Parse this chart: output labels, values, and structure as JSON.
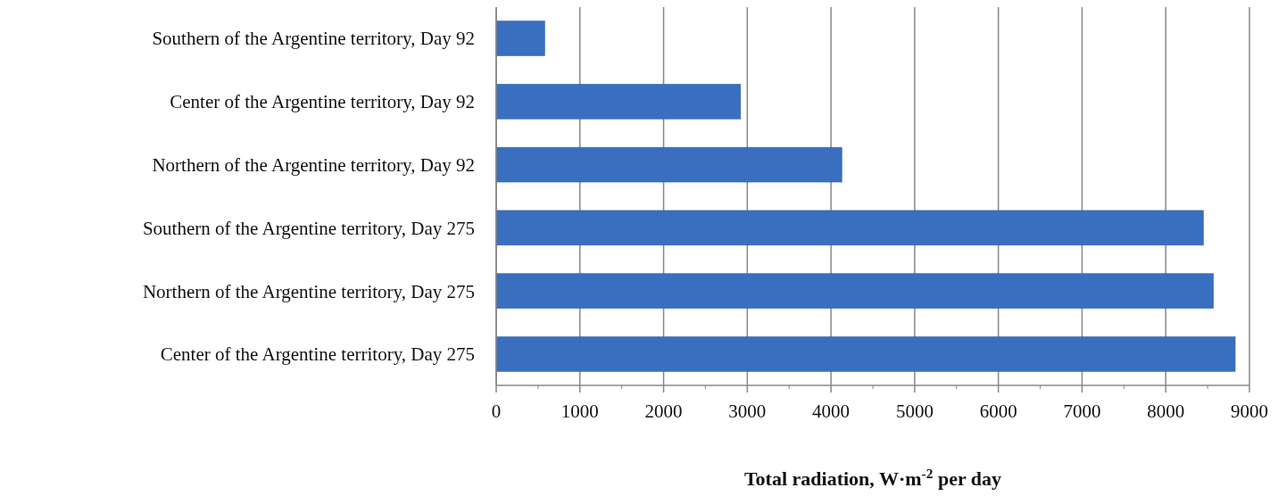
{
  "chart_data": {
    "type": "bar",
    "orientation": "horizontal",
    "categories": [
      "Southern of the Argentine territory, Day 92",
      "Center of the Argentine territory, Day 92",
      "Northern of the Argentine territory, Day 92",
      "Southern of the Argentine territory, Day 275",
      "Northern of the Argentine territory, Day 275",
      "Center of the Argentine territory, Day 275"
    ],
    "values": [
      580,
      2920,
      4130,
      8450,
      8570,
      8830
    ],
    "color": "#3a6fc0",
    "xlim": [
      0,
      9000
    ],
    "xticks": [
      0,
      1000,
      2000,
      3000,
      4000,
      5000,
      6000,
      7000,
      8000,
      9000
    ],
    "xlabel": "Total radiation, W·m$^{-2}$ per day",
    "grid": "x"
  }
}
